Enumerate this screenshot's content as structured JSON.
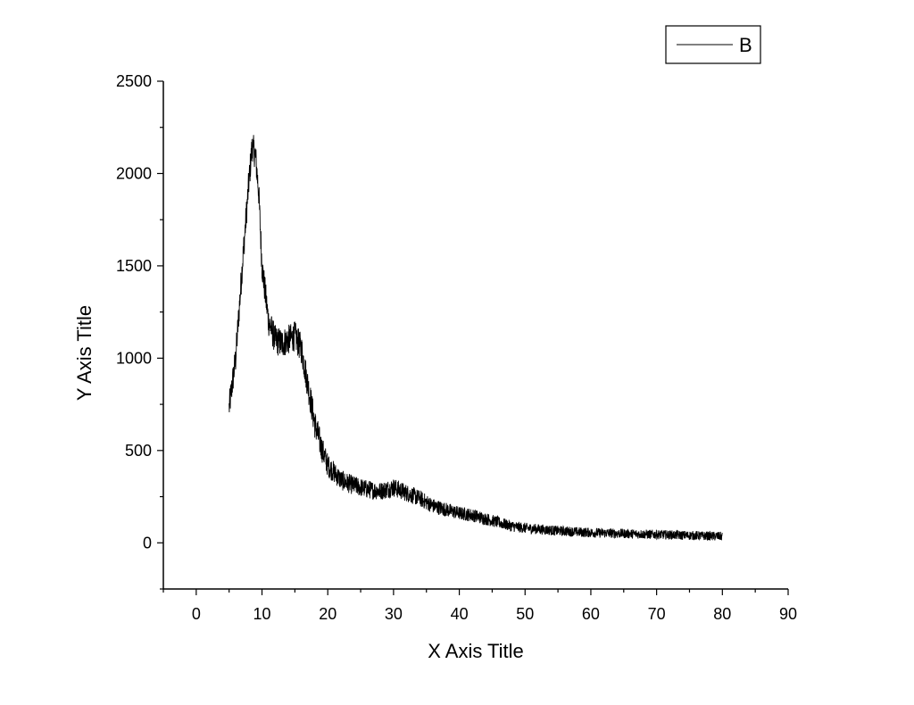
{
  "chart_data": {
    "type": "line",
    "title": "",
    "xlabel": "X Axis Title",
    "ylabel": "Y Axis Title",
    "xlim": [
      -5,
      90
    ],
    "ylim": [
      -250,
      2500
    ],
    "xticks": [
      0,
      10,
      20,
      30,
      40,
      50,
      60,
      70,
      80,
      90
    ],
    "yticks": [
      0,
      500,
      1000,
      1500,
      2000,
      2500
    ],
    "grid": false,
    "legend_position": "top-right",
    "line_color": "#000000",
    "series": [
      {
        "name": "B",
        "x": [
          5,
          6,
          7,
          8,
          8.5,
          9,
          9.5,
          10,
          11,
          12,
          13,
          14,
          15,
          16,
          17,
          18,
          19,
          20,
          22,
          24,
          26,
          28,
          30,
          32,
          34,
          36,
          38,
          40,
          42,
          44,
          46,
          48,
          50,
          55,
          60,
          65,
          70,
          75,
          80
        ],
        "y": [
          730,
          1000,
          1500,
          1950,
          2150,
          2100,
          1900,
          1500,
          1200,
          1100,
          1080,
          1100,
          1120,
          1050,
          850,
          650,
          520,
          420,
          340,
          310,
          290,
          280,
          300,
          270,
          240,
          200,
          180,
          160,
          150,
          130,
          110,
          90,
          80,
          65,
          55,
          50,
          45,
          40,
          35
        ],
        "noise_amplitude": 60
      }
    ]
  }
}
